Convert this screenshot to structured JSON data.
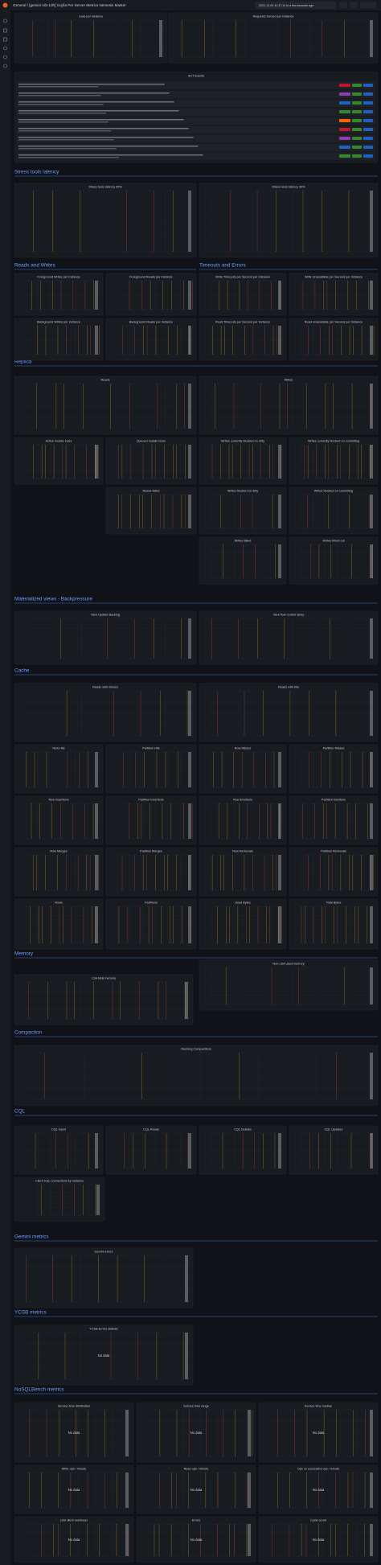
{
  "header": {
    "breadcrumb": "General / [gemini-1tb-10h] Scylla Per Server Metrics Nemesis Master",
    "time_range": "2021-12-09 11:37:12 to a few seconds ago"
  },
  "sections": [
    "Stress tools latency",
    "Reads and Writes",
    "Timeouts and Errors",
    "Replica",
    "Materialized views - Backpressure",
    "Cache",
    "Memory",
    "Compaction",
    "CQL",
    "Gemini metrics",
    "YCSB metrics",
    "NoSQLBench metrics"
  ],
  "panels": [
    {
      "title": "Load per instance"
    },
    {
      "title": "Requests Served per Instance"
    },
    {
      "title": "SCT Events"
    },
    {
      "title": "Stress tools latency 95%"
    },
    {
      "title": "Stress tools latency 99%"
    },
    {
      "title": "Foreground Writes per Instance"
    },
    {
      "title": "Foreground Reads per Instance"
    },
    {
      "title": "Write Timeouts per Second per Instance"
    },
    {
      "title": "Write Unavailable per Second per Instance"
    },
    {
      "title": "Background Writes per Instance"
    },
    {
      "title": "Background Reads per Instance"
    },
    {
      "title": "Read Timeouts per Second per Instance"
    },
    {
      "title": "Read Unavailable per Second per Instance"
    },
    {
      "title": "Reads"
    },
    {
      "title": "Writes"
    },
    {
      "title": "Active mutate locks"
    },
    {
      "title": "Queued mutate locks"
    },
    {
      "title": "Writes currently blocked on dirty"
    },
    {
      "title": "Writes currently blocked on commitlog"
    },
    {
      "title": "Reads failed"
    },
    {
      "title": "Writes blocked on dirty"
    },
    {
      "title": "Writes blocked on commitlog"
    },
    {
      "title": "Writes failed"
    },
    {
      "title": "Writes timed out"
    },
    {
      "title": "View Update Backlog"
    },
    {
      "title": "View flow control delay"
    },
    {
      "title": "Reads with misses"
    },
    {
      "title": "Reads with hits"
    },
    {
      "title": "Row Hits"
    },
    {
      "title": "Partition Hits"
    },
    {
      "title": "Row Misses"
    },
    {
      "title": "Partition Misses"
    },
    {
      "title": "Row Insertions"
    },
    {
      "title": "Partition Insertions"
    },
    {
      "title": "Row Evictions"
    },
    {
      "title": "Partition Evictions"
    },
    {
      "title": "Row Merges"
    },
    {
      "title": "Partition Merges"
    },
    {
      "title": "Row Removals"
    },
    {
      "title": "Partition Removals"
    },
    {
      "title": "Rows"
    },
    {
      "title": "Partitions"
    },
    {
      "title": "Used Bytes"
    },
    {
      "title": "Total Bytes"
    },
    {
      "title": "LSA total memory"
    },
    {
      "title": "Non-LSA used memory"
    },
    {
      "title": "Running Compactions"
    },
    {
      "title": "CQL Insert"
    },
    {
      "title": "CQL Reads"
    },
    {
      "title": "CQL Deletes"
    },
    {
      "title": "CQL Updates"
    },
    {
      "title": "Client CQL connections by instance"
    },
    {
      "title": "Gemini errors"
    },
    {
      "title": "YCSB Errors statistic",
      "note": "No data"
    },
    {
      "title": "Service time distribution",
      "note": "No data"
    },
    {
      "title": "Service time range",
      "note": "No data"
    },
    {
      "title": "Service time median",
      "note": "No data"
    },
    {
      "title": "Write ops / minute",
      "note": "No data"
    },
    {
      "title": "Read ops / minute",
      "note": "No data"
    },
    {
      "title": "Ops vs successful ops / minute",
      "note": "No data"
    },
    {
      "title": "p99 client overhead",
      "note": "No data"
    },
    {
      "title": "Errors",
      "note": "No data"
    },
    {
      "title": "Cycle count",
      "note": "No data"
    }
  ]
}
